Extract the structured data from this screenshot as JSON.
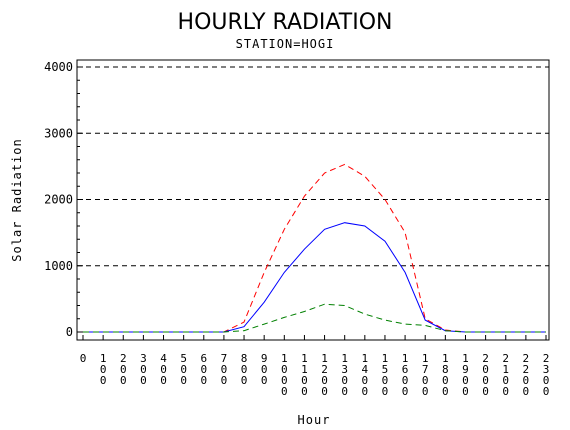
{
  "chart_data": {
    "type": "line",
    "title": "HOURLY RADIATION",
    "subtitle": "STATION=HOGI",
    "xlabel": "Hour",
    "ylabel": "Solar Radiation",
    "xlim": [
      0,
      2300
    ],
    "ylim": [
      0,
      4000
    ],
    "x": [
      0,
      100,
      200,
      300,
      400,
      500,
      600,
      700,
      800,
      900,
      1000,
      1100,
      1200,
      1300,
      1400,
      1500,
      1600,
      1700,
      1800,
      1900,
      2000,
      2100,
      2200,
      2300
    ],
    "x_tick_labels": [
      "0",
      "100",
      "200",
      "300",
      "400",
      "500",
      "600",
      "700",
      "800",
      "900",
      "1000",
      "1100",
      "1200",
      "1300",
      "1400",
      "1500",
      "1600",
      "1700",
      "1800",
      "1900",
      "2000",
      "2100",
      "2200",
      "2300"
    ],
    "y_ticks": [
      0,
      1000,
      2000,
      3000,
      4000
    ],
    "y_tick_labels": [
      "0",
      "1000",
      "2000",
      "3000",
      "4000"
    ],
    "grid": "horizontal dashed",
    "series": [
      {
        "color": "#ff0000",
        "style": "dashed",
        "values": [
          0,
          0,
          0,
          0,
          0,
          0,
          0,
          0,
          150,
          900,
          1550,
          2050,
          2400,
          2530,
          2350,
          2000,
          1500,
          200,
          30,
          0,
          0,
          0,
          0,
          0
        ]
      },
      {
        "color": "#0000ff",
        "style": "solid",
        "values": [
          0,
          0,
          0,
          0,
          0,
          0,
          0,
          0,
          80,
          450,
          900,
          1250,
          1550,
          1650,
          1600,
          1370,
          900,
          180,
          20,
          0,
          0,
          0,
          0,
          0
        ]
      },
      {
        "color": "#008000",
        "style": "dashed",
        "values": [
          0,
          0,
          0,
          0,
          0,
          0,
          0,
          0,
          20,
          120,
          220,
          310,
          420,
          400,
          270,
          180,
          120,
          100,
          20,
          0,
          0,
          0,
          0,
          0
        ]
      }
    ]
  }
}
